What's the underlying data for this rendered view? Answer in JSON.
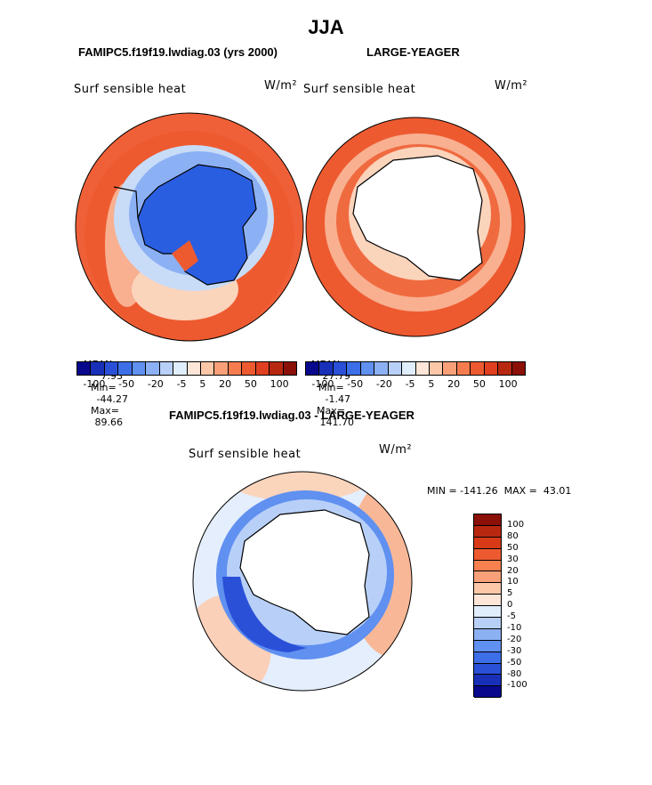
{
  "season": "JJA",
  "top_left": {
    "case_title": "FAMIPC5.f19f19.lwdiag.03 (yrs 2000)",
    "variable": "Surf sensible heat",
    "units": "W/m²",
    "mean_label": "MEAN=",
    "mean": "7.93",
    "min_label": "Min=",
    "min": "-44.27",
    "max_label": "Max=",
    "max": "89.66"
  },
  "top_right": {
    "case_title": "LARGE-YEAGER",
    "variable": "Surf sensible heat",
    "units": "W/m²",
    "mean_label": "MEAN=",
    "mean": "27.79",
    "min_label": "Min=",
    "min": "-1.47",
    "max_label": "Max=",
    "max": "141.70"
  },
  "top_colorbar": {
    "colors": [
      "#08088c",
      "#1830b8",
      "#2a50d8",
      "#3c6ee8",
      "#6090f0",
      "#8cb0f4",
      "#b8d0f8",
      "#e0eefc",
      "#fde6d8",
      "#fcc8a8",
      "#faa078",
      "#f67c50",
      "#ee5a30",
      "#e04020",
      "#b82810",
      "#8a1008"
    ],
    "ticks": [
      "-100",
      "-50",
      "-20",
      "-5",
      "5",
      "20",
      "50",
      "100"
    ]
  },
  "bottom": {
    "title": "FAMIPC5.f19f19.lwdiag.03 - LARGE-YEAGER",
    "variable": "Surf sensible heat",
    "units": "W/m²",
    "range_text": "MIN = -141.26  MAX =  43.01"
  },
  "diff_colorbar": {
    "colors": [
      "#8a1008",
      "#b82810",
      "#d83a18",
      "#ee5a30",
      "#f6804e",
      "#faa078",
      "#fcc8a8",
      "#fde6d8",
      "#e0eefc",
      "#b8d0f8",
      "#8cb0f4",
      "#6090f0",
      "#3c6ee8",
      "#2a50d8",
      "#1830b8",
      "#08088c"
    ],
    "labels": [
      "100",
      "80",
      "50",
      "30",
      "20",
      "10",
      "5",
      "0",
      "-5",
      "-10",
      "-20",
      "-30",
      "-50",
      "-80",
      "-100"
    ]
  },
  "legend_colors": {
    "ocean_warm": "#f0603a",
    "ocean_light": "#f8c0a0",
    "ice_blue": "#2a5ee0",
    "land_white": "#ffffff"
  }
}
